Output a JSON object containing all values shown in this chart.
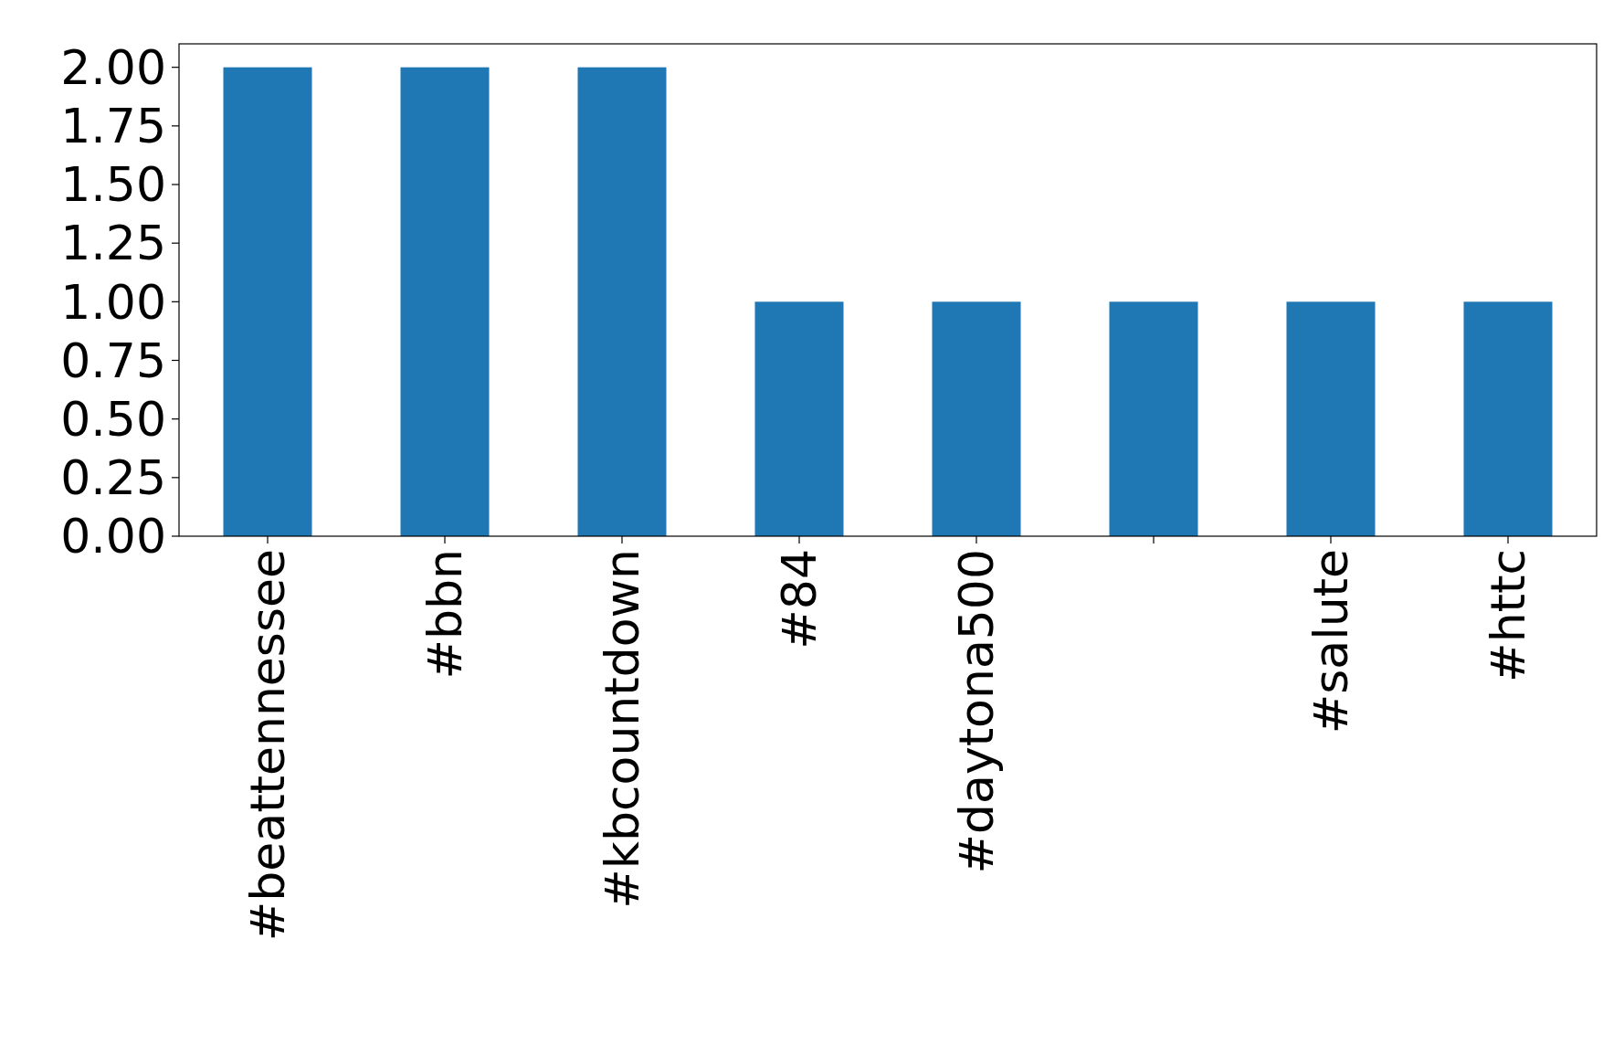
{
  "chart_data": {
    "type": "bar",
    "categories": [
      "#beattennessee",
      "#bbn",
      "#kbcountdown",
      "#84",
      "#daytona500",
      null,
      "#salute",
      "#httc"
    ],
    "values": [
      2,
      2,
      2,
      1,
      1,
      1,
      1,
      1
    ],
    "color": "#1f77b4",
    "ylim": [
      0,
      2.1
    ],
    "yticks": [
      {
        "value": 0,
        "label": "0.00"
      },
      {
        "value": 0.25,
        "label": "0.25"
      },
      {
        "value": 0.5,
        "label": "0.50"
      },
      {
        "value": 0.75,
        "label": "0.75"
      },
      {
        "value": 1,
        "label": "1.00"
      },
      {
        "value": 1.25,
        "label": "1.25"
      },
      {
        "value": 1.5,
        "label": "1.50"
      },
      {
        "value": 1.75,
        "label": "1.75"
      },
      {
        "value": 2,
        "label": "2.00"
      }
    ],
    "grid": false
  }
}
